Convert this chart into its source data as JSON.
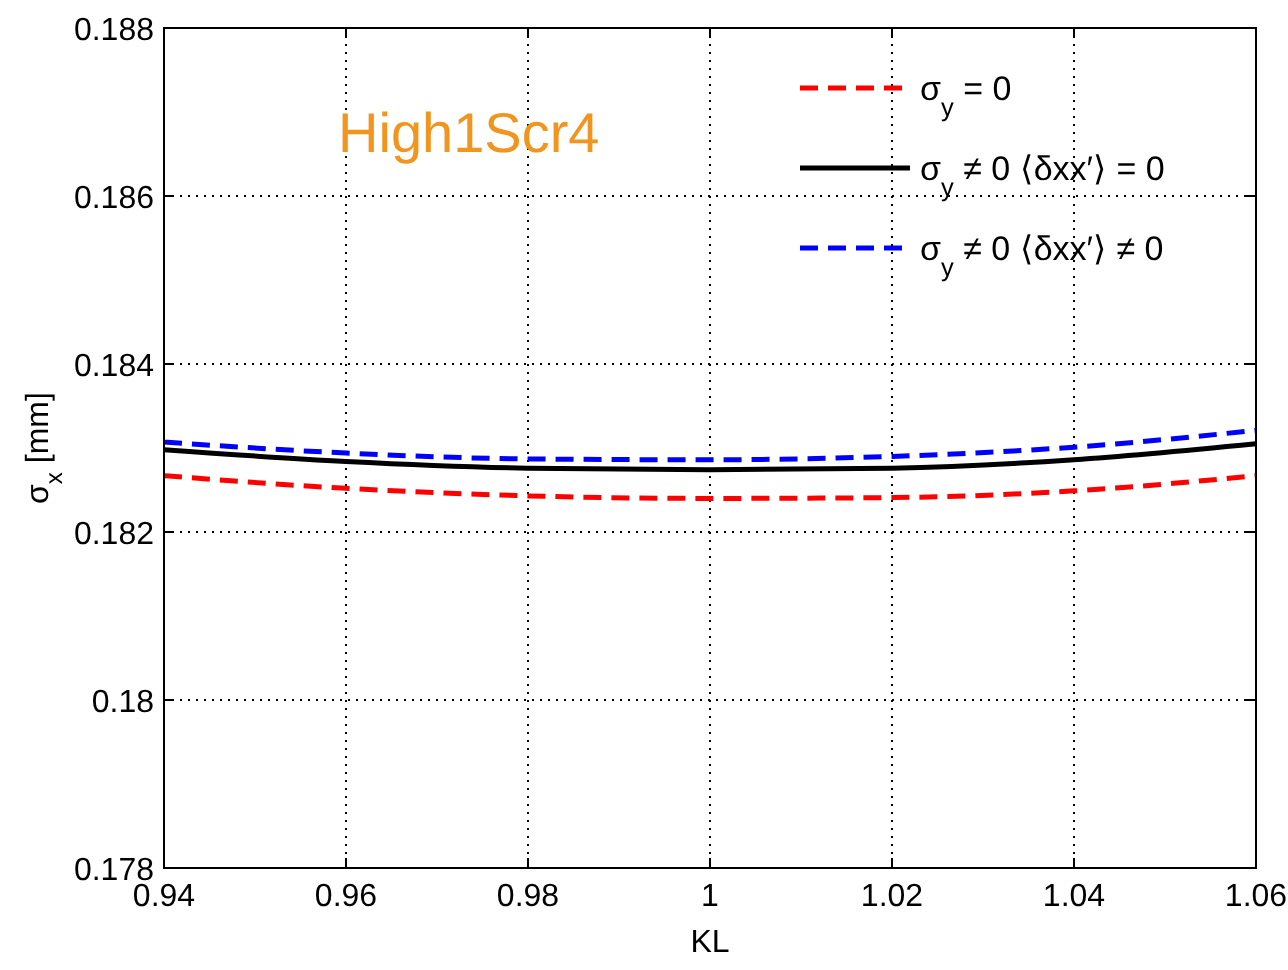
{
  "chart_data": {
    "type": "line",
    "xlabel": "KL",
    "ylabel": "σ$_{x}$ [mm]",
    "x": [
      0.94,
      0.96,
      0.98,
      1.0,
      1.02,
      1.04,
      1.06
    ],
    "series": [
      {
        "name": "σ$_{y}$ = 0",
        "color": "#ff0000",
        "line_style": "dashed",
        "values": [
          0.18267,
          0.18252,
          0.18243,
          0.1824,
          0.18241,
          0.18249,
          0.18267
        ]
      },
      {
        "name": "σ$_{y}$ ≠ 0 ⟨δxx′⟩ = 0",
        "color": "#000000",
        "line_style": "solid",
        "values": [
          0.18298,
          0.18284,
          0.18276,
          0.18274,
          0.18276,
          0.18286,
          0.18305
        ]
      },
      {
        "name": "σ$_{y}$ ≠ 0 ⟨δxx′⟩ ≠ 0",
        "color": "#0000ff",
        "line_style": "dashed",
        "values": [
          0.18307,
          0.18294,
          0.18287,
          0.18286,
          0.1829,
          0.18301,
          0.18321
        ]
      }
    ],
    "xlim": [
      0.94,
      1.06
    ],
    "xticks": [
      0.94,
      0.96,
      0.98,
      1,
      1.02,
      1.04,
      1.06
    ],
    "ylim": [
      0.178,
      0.188
    ],
    "yticks": [
      0.178,
      0.18,
      0.182,
      0.184,
      0.186,
      0.188
    ],
    "grid": true,
    "legend": "top right",
    "annotations": [
      "High1Scr4"
    ]
  }
}
